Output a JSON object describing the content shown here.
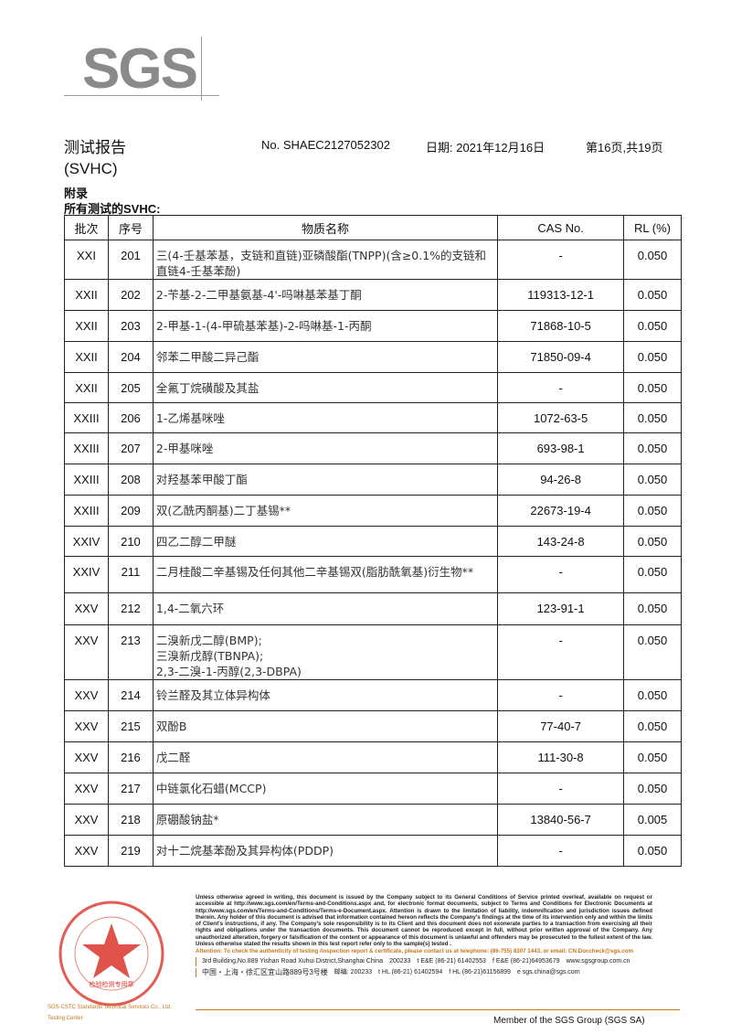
{
  "header": {
    "logo": "SGS",
    "title": "测试报告",
    "report_no": "No. SHAEC2127052302",
    "date": "日期: 2021年12月16日",
    "page": "第16页,共19页",
    "subtitle": "(SVHC)",
    "appendix": "附录",
    "all_tested": "所有测试的SVHC:"
  },
  "table": {
    "headers": [
      "批次",
      "序号",
      "物质名称",
      "CAS No.",
      "RL (%)"
    ],
    "rows": [
      [
        "XXI",
        "201",
        "三(4-壬基苯基，支链和直链)亚磷酸酯(TNPP)(含≥0.1%的支链和直链4-壬基苯酚)",
        "-",
        "0.050"
      ],
      [
        "XXII",
        "202",
        "2-苄基-2-二甲基氨基-4'-吗啉基苯基丁酮",
        "119313-12-1",
        "0.050"
      ],
      [
        "XXII",
        "203",
        "2-甲基-1-(4-甲硫基苯基)-2-吗啉基-1-丙酮",
        "71868-10-5",
        "0.050"
      ],
      [
        "XXII",
        "204",
        "邻苯二甲酸二异己酯",
        "71850-09-4",
        "0.050"
      ],
      [
        "XXII",
        "205",
        "全氟丁烷磺酸及其盐",
        "-",
        "0.050"
      ],
      [
        "XXIII",
        "206",
        "1-乙烯基咪唑",
        "1072-63-5",
        "0.050"
      ],
      [
        "XXIII",
        "207",
        "2-甲基咪唑",
        "693-98-1",
        "0.050"
      ],
      [
        "XXIII",
        "208",
        "对羟基苯甲酸丁酯",
        "94-26-8",
        "0.050"
      ],
      [
        "XXIII",
        "209",
        "双(乙酰丙酮基)二丁基锡**",
        "22673-19-4",
        "0.050"
      ],
      [
        "XXIV",
        "210",
        "四乙二醇二甲醚",
        "143-24-8",
        "0.050"
      ],
      [
        "XXIV",
        "211",
        "二月桂酸二辛基锡及任何其他二辛基锡双(脂肪酰氧基)衍生物**",
        "-",
        "0.050"
      ],
      [
        "XXV",
        "212",
        "1,4-二氧六环",
        "123-91-1",
        "0.050"
      ],
      [
        "XXV",
        "213",
        "二溴新戊二醇(BMP);\n三溴新戊醇(TBNPA);\n2,3-二溴-1-丙醇(2,3-DBPA)",
        "-",
        "0.050"
      ],
      [
        "XXV",
        "214",
        "铃兰醛及其立体异构体",
        "-",
        "0.050"
      ],
      [
        "XXV",
        "215",
        "双酚B",
        "77-40-7",
        "0.050"
      ],
      [
        "XXV",
        "216",
        "戊二醛",
        "111-30-8",
        "0.050"
      ],
      [
        "XXV",
        "217",
        "中链氯化石蜡(MCCP)",
        "-",
        "0.050"
      ],
      [
        "XXV",
        "218",
        "原硼酸钠盐*",
        "13840-56-7",
        "0.005"
      ],
      [
        "XXV",
        "219",
        "对十二烷基苯酚及其异构体(PDDP)",
        "-",
        "0.050"
      ]
    ]
  },
  "footer": {
    "stamp_text": "检验检测专用章 Inspection & Testing Services",
    "disclaimer": "Unless otherwise agreed in writing, this document is issued by the Company subject to its General Conditions of Service printed overleaf, available on request or accessible at http://www.sgs.com/en/Terms-and-Conditions.aspx and, for electronic format documents, subject to Terms and Conditions for Electronic Documents at http://www.sgs.com/en/Terms-and-Conditions/Terms-e-Document.aspx. Attention is drawn to the limitation of liability, indemnification and jurisdiction issues defined therein. Any holder of this document is advised that information contained hereon reflects the Company's findings at the time of its intervention only and within the limits of Client's instructions, if any. The Company's sole responsibility is to its Client and this document does not exonerate parties to a transaction from exercising all their rights and obligations under the transaction documents. This document cannot be reproduced except in full, without prior written approval of the Company. Any unauthorized alteration, forgery or falsification of the content or appearance of this document is unlawful and offenders may be prosecuted to the fullest extent of the law. Unless otherwise stated the results shown in this test report refer only to the sample(s) tested .",
    "attention": "Attention: To check the authenticity of testing /inspection report & certificate, please contact us at telephone: (86-755) 8307 1443, or email: CN.Doccheck@sgs.com",
    "addr_en": "3rd Building,No.889 Yishan Road Xuhui District,Shanghai China",
    "zip_en": "200233",
    "tel1": "t E&E (86-21) 61402553",
    "fax1": "f E&E (86-21)64953679",
    "web": "www.sgsgroup.com.cn",
    "addr_cn": "中国・上海・徐汇区宜山路889号3号楼",
    "zip_cn": "邮编: 200233",
    "tel2": "t HL (86-21) 61402594",
    "fax2": "f HL (86-21)61156899",
    "email": "e  sgs.china@sgs.com",
    "member": "Member of the SGS Group (SGS SA)"
  },
  "colors": {
    "logo": "#8a8a8a",
    "accent": "#c8751d",
    "stamp": "#d9352a"
  }
}
